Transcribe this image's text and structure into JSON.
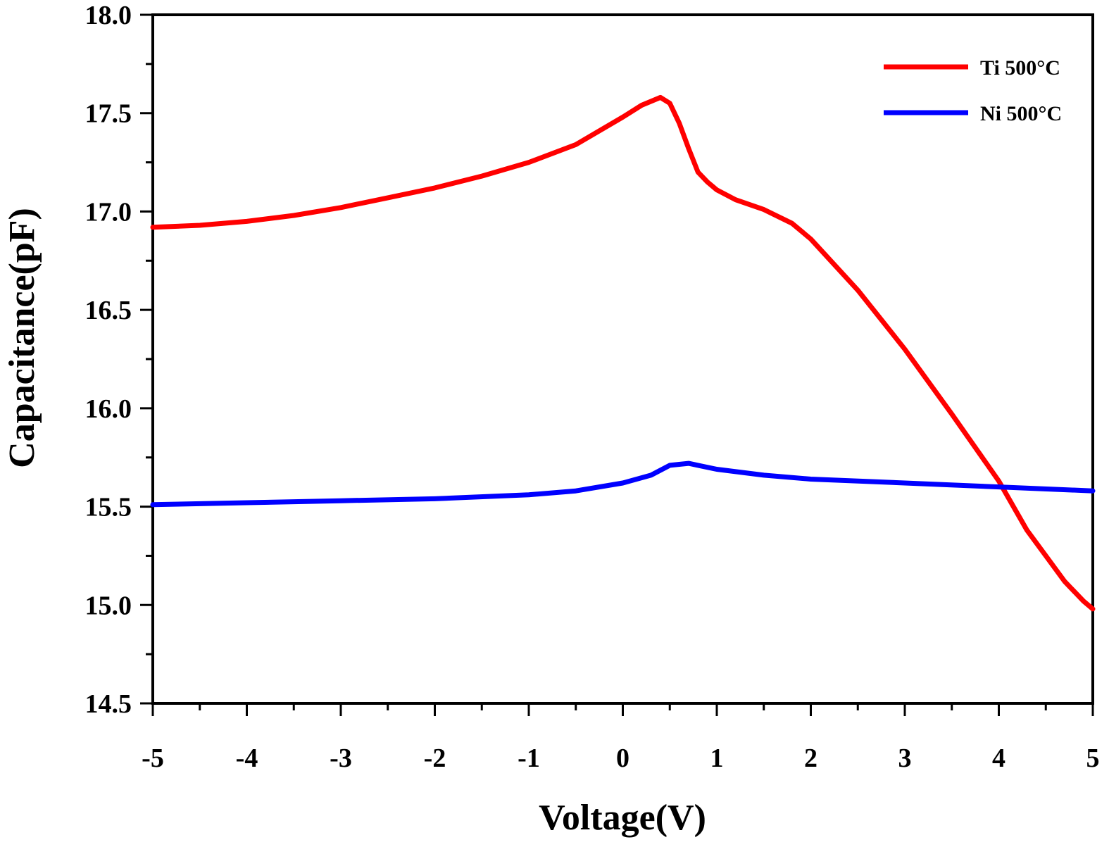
{
  "chart_data": {
    "type": "line",
    "title": "",
    "xlabel": "Voltage(V)",
    "ylabel": "Capacitance(pF)",
    "xlim": [
      -5,
      5
    ],
    "ylim": [
      14.5,
      18.0
    ],
    "x_ticks": [
      -5,
      -4,
      -3,
      -2,
      -1,
      0,
      1,
      2,
      3,
      4,
      5
    ],
    "x_tick_labels": [
      "-5",
      "-4",
      "-3",
      "-2",
      "-1",
      "0",
      "1",
      "2",
      "3",
      "4",
      "5"
    ],
    "y_ticks": [
      14.5,
      15.0,
      15.5,
      16.0,
      16.5,
      17.0,
      17.5,
      18.0
    ],
    "y_tick_labels": [
      "14.5",
      "15.0",
      "15.5",
      "16.0",
      "16.5",
      "17.0",
      "17.5",
      "18.0"
    ],
    "grid": false,
    "legend_position": "top-right",
    "series": [
      {
        "name": "Ti 500°C",
        "color": "#ff0000",
        "x": [
          -5,
          -4.5,
          -4,
          -3.5,
          -3,
          -2.5,
          -2,
          -1.5,
          -1,
          -0.5,
          0,
          0.2,
          0.4,
          0.5,
          0.6,
          0.7,
          0.8,
          0.9,
          1.0,
          1.2,
          1.5,
          1.8,
          2.0,
          2.5,
          3.0,
          3.5,
          4.0,
          4.3,
          4.5,
          4.7,
          4.9,
          5.0
        ],
        "y": [
          16.92,
          16.93,
          16.95,
          16.98,
          17.02,
          17.07,
          17.12,
          17.18,
          17.25,
          17.34,
          17.48,
          17.54,
          17.58,
          17.55,
          17.45,
          17.32,
          17.2,
          17.15,
          17.11,
          17.06,
          17.01,
          16.94,
          16.86,
          16.6,
          16.3,
          15.97,
          15.63,
          15.38,
          15.25,
          15.12,
          15.02,
          14.98
        ]
      },
      {
        "name": "Ni 500°C",
        "color": "#0000ff",
        "x": [
          -5,
          -4,
          -3,
          -2,
          -1,
          -0.5,
          0,
          0.3,
          0.5,
          0.7,
          0.8,
          1.0,
          1.5,
          2.0,
          3.0,
          4.0,
          5.0
        ],
        "y": [
          15.51,
          15.52,
          15.53,
          15.54,
          15.56,
          15.58,
          15.62,
          15.66,
          15.71,
          15.72,
          15.71,
          15.69,
          15.66,
          15.64,
          15.62,
          15.6,
          15.58
        ]
      }
    ]
  }
}
